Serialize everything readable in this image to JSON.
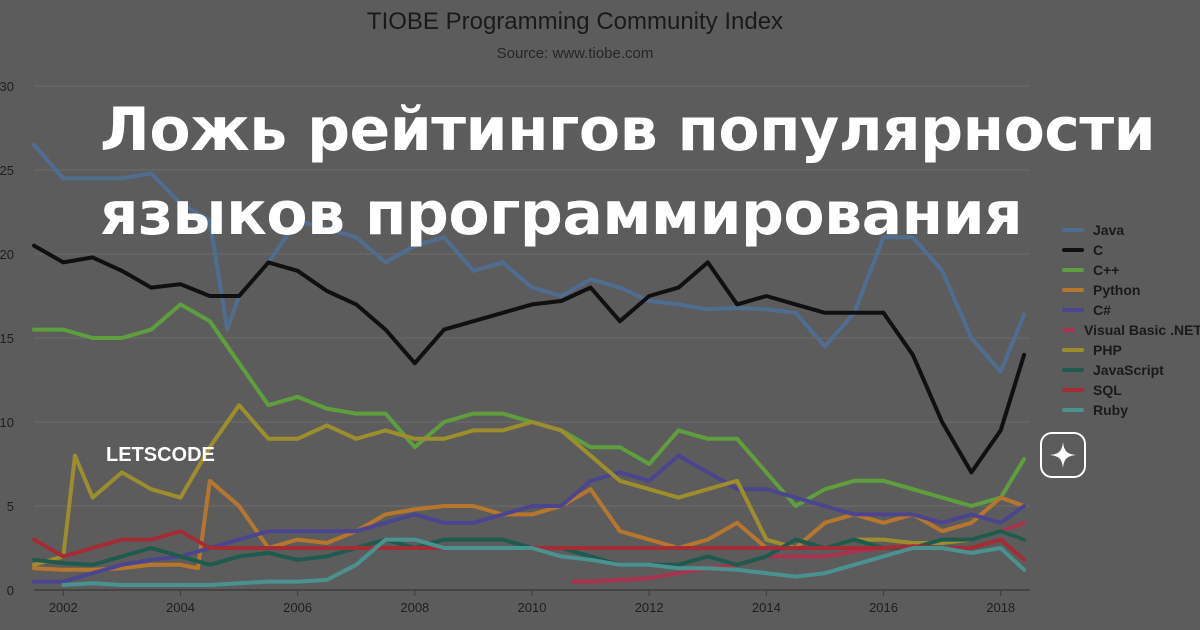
{
  "headline": {
    "line1": "Ложь рейтингов популярности",
    "line2": "языков программирования"
  },
  "brand": {
    "name": "LETSCODE",
    "icon": "sparkle-star-icon"
  },
  "colors": {
    "background": "#5c5c5c",
    "grid": "#6b6b6b",
    "axis": "#3c3c3c"
  },
  "chart_data": {
    "type": "line",
    "title": "TIOBE Programming Community Index",
    "subtitle": "Source: www.tiobe.com",
    "xlabel": "",
    "ylabel": "",
    "xlim": [
      2001.5,
      2018.5
    ],
    "ylim": [
      0,
      30
    ],
    "x_ticks": [
      2002,
      2004,
      2006,
      2008,
      2010,
      2012,
      2014,
      2016,
      2018
    ],
    "y_ticks": [
      0,
      5,
      10,
      15,
      20,
      25,
      30
    ],
    "grid": true,
    "legend_position": "right",
    "series": [
      {
        "name": "Java",
        "color": "#4f6e8f",
        "x": [
          2001.5,
          2002,
          2002.5,
          2003,
          2003.5,
          2004,
          2004.5,
          2004.8,
          2005,
          2005.5,
          2006,
          2006.5,
          2007,
          2007.5,
          2008,
          2008.5,
          2009,
          2009.5,
          2010,
          2010.5,
          2011,
          2011.5,
          2012,
          2012.5,
          2013,
          2013.5,
          2014,
          2014.5,
          2015,
          2015.5,
          2016,
          2016.5,
          2017,
          2017.5,
          2018,
          2018.4
        ],
        "values": [
          26.5,
          24.5,
          24.5,
          24.5,
          24.8,
          23,
          22,
          15.5,
          17.5,
          19.5,
          22,
          21.5,
          21,
          19.5,
          20.5,
          21,
          19,
          19.5,
          18,
          17.5,
          18.5,
          18,
          17.2,
          17,
          16.7,
          16.8,
          16.7,
          16.5,
          14.5,
          16.5,
          21,
          21,
          19,
          15,
          13,
          16.4
        ]
      },
      {
        "name": "C",
        "color": "#101010",
        "x": [
          2001.5,
          2002,
          2002.5,
          2003,
          2003.5,
          2004,
          2004.5,
          2005,
          2005.5,
          2006,
          2006.5,
          2007,
          2007.5,
          2008,
          2008.5,
          2009,
          2009.5,
          2010,
          2010.5,
          2011,
          2011.5,
          2012,
          2012.5,
          2013,
          2013.5,
          2014,
          2014.5,
          2015,
          2015.5,
          2016,
          2016.5,
          2017,
          2017.5,
          2018,
          2018.4
        ],
        "values": [
          20.5,
          19.5,
          19.8,
          19,
          18,
          18.2,
          17.5,
          17.5,
          19.5,
          19,
          17.8,
          17,
          15.5,
          13.5,
          15.5,
          16,
          16.5,
          17,
          17.2,
          18,
          16,
          17.5,
          18,
          19.5,
          17,
          17.5,
          17,
          16.5,
          16.5,
          16.5,
          14,
          10,
          7,
          9.5,
          14
        ]
      },
      {
        "name": "C++",
        "color": "#5c9f3c",
        "x": [
          2001.5,
          2002,
          2002.5,
          2003,
          2003.5,
          2004,
          2004.5,
          2005,
          2005.5,
          2006,
          2006.5,
          2007,
          2007.5,
          2008,
          2008.5,
          2009,
          2009.5,
          2010,
          2010.5,
          2011,
          2011.5,
          2012,
          2012.5,
          2013,
          2013.5,
          2014,
          2014.5,
          2015,
          2015.5,
          2016,
          2016.5,
          2017,
          2017.5,
          2018,
          2018.4
        ],
        "values": [
          15.5,
          15.5,
          15,
          15,
          15.5,
          17,
          16,
          13.5,
          11,
          11.5,
          10.8,
          10.5,
          10.5,
          8.5,
          10,
          10.5,
          10.5,
          10,
          9.5,
          8.5,
          8.5,
          7.5,
          9.5,
          9,
          9,
          7,
          5,
          6,
          6.5,
          6.5,
          6,
          5.5,
          5,
          5.5,
          7.8
        ]
      },
      {
        "name": "Python",
        "color": "#b7762e",
        "x": [
          2001.5,
          2002,
          2002.5,
          2003,
          2003.5,
          2004,
          2004.3,
          2004.5,
          2005,
          2005.5,
          2006,
          2006.5,
          2007,
          2007.5,
          2008,
          2008.5,
          2009,
          2009.5,
          2010,
          2010.5,
          2011,
          2011.5,
          2012,
          2012.5,
          2013,
          2013.5,
          2014,
          2014.5,
          2015,
          2015.5,
          2016,
          2016.5,
          2017,
          2017.5,
          2018,
          2018.4
        ],
        "values": [
          1.3,
          1.2,
          1.2,
          1.3,
          1.5,
          1.5,
          1.3,
          6.5,
          5,
          2.5,
          3,
          2.8,
          3.5,
          4.5,
          4.8,
          5,
          5,
          4.5,
          4.5,
          5,
          6,
          3.5,
          3,
          2.5,
          3,
          4,
          2.5,
          2.5,
          4,
          4.5,
          4,
          4.5,
          3.5,
          4,
          5.5,
          5
        ]
      },
      {
        "name": "C#",
        "color": "#4b4590",
        "x": [
          2001.5,
          2002,
          2002.5,
          2003,
          2003.5,
          2004,
          2004.5,
          2005,
          2005.5,
          2006,
          2006.5,
          2007,
          2007.5,
          2008,
          2008.5,
          2009,
          2009.5,
          2010,
          2010.5,
          2011,
          2011.5,
          2012,
          2012.5,
          2013,
          2013.5,
          2014,
          2014.5,
          2015,
          2015.5,
          2016,
          2016.5,
          2017,
          2017.5,
          2018,
          2018.4
        ],
        "values": [
          0.5,
          0.5,
          1,
          1.5,
          1.8,
          2,
          2.5,
          3,
          3.5,
          3.5,
          3.5,
          3.5,
          4,
          4.5,
          4,
          4,
          4.5,
          5,
          5,
          6.5,
          7,
          6.5,
          8,
          7,
          6,
          6,
          5.5,
          5,
          4.5,
          4.5,
          4.5,
          4,
          4.5,
          4,
          5
        ]
      },
      {
        "name": "Visual Basic .NET",
        "color": "#a8334f",
        "x": [
          2010.7,
          2011,
          2011.5,
          2012,
          2012.5,
          2013,
          2013.5,
          2014,
          2014.5,
          2015,
          2015.5,
          2016,
          2016.5,
          2017,
          2017.5,
          2018,
          2018.4
        ],
        "values": [
          0.5,
          0.5,
          0.6,
          0.7,
          1,
          1.3,
          1.5,
          2,
          2,
          2,
          2.3,
          2.5,
          2.5,
          3,
          3,
          3.5,
          4
        ]
      },
      {
        "name": "PHP",
        "color": "#9c8e2c",
        "x": [
          2001.5,
          2002,
          2002.2,
          2002.5,
          2003,
          2003.5,
          2004,
          2004.5,
          2005,
          2005.5,
          2006,
          2006.5,
          2007,
          2007.5,
          2008,
          2008.5,
          2009,
          2009.5,
          2010,
          2010.5,
          2011,
          2011.5,
          2012,
          2012.5,
          2013,
          2013.5,
          2014,
          2014.5,
          2015,
          2015.5,
          2016,
          2016.5,
          2017,
          2017.5,
          2018,
          2018.4
        ],
        "values": [
          1.5,
          2,
          8,
          5.5,
          7,
          6,
          5.5,
          8.5,
          11,
          9,
          9,
          9.8,
          9,
          9.5,
          9,
          9,
          9.5,
          9.5,
          10,
          9.5,
          8,
          6.5,
          6,
          5.5,
          6,
          6.5,
          3,
          2.5,
          2.5,
          3,
          3,
          2.8,
          2.8,
          3,
          3.5,
          3
        ]
      },
      {
        "name": "JavaScript",
        "color": "#1f5a4e",
        "x": [
          2001.5,
          2002,
          2002.5,
          2003,
          2003.5,
          2004,
          2004.5,
          2005,
          2005.5,
          2006,
          2006.5,
          2007,
          2007.5,
          2008,
          2008.5,
          2009,
          2009.5,
          2010,
          2010.5,
          2011,
          2011.5,
          2012,
          2012.5,
          2013,
          2013.5,
          2014,
          2014.5,
          2015,
          2015.5,
          2016,
          2016.5,
          2017,
          2017.5,
          2018,
          2018.4
        ],
        "values": [
          1.8,
          1.6,
          1.5,
          2,
          2.5,
          2,
          1.5,
          2,
          2.2,
          1.8,
          2,
          2.5,
          3,
          2.5,
          3,
          3,
          3,
          2.5,
          2.5,
          2,
          1.5,
          1.5,
          1.5,
          2,
          1.5,
          2,
          3,
          2.5,
          3,
          2.5,
          2.5,
          3,
          3,
          3.5,
          3
        ]
      },
      {
        "name": "SQL",
        "color": "#a42c35",
        "x": [
          2001.5,
          2002,
          2002.5,
          2003,
          2003.5,
          2004,
          2004.5,
          2005,
          2006,
          2008,
          2010,
          2012,
          2014,
          2014.5,
          2015,
          2015.5,
          2016,
          2016.5,
          2017,
          2017.5,
          2018,
          2018.4
        ],
        "values": [
          3,
          2,
          2.5,
          3,
          3,
          3.5,
          2.5,
          2.5,
          2.5,
          2.5,
          2.5,
          2.5,
          2.5,
          2.5,
          2.5,
          2.5,
          2.5,
          2.6,
          2.5,
          2.5,
          3,
          1.8
        ]
      },
      {
        "name": "Ruby",
        "color": "#4a9290",
        "x": [
          2002,
          2002.5,
          2003,
          2003.5,
          2004,
          2004.5,
          2005,
          2005.5,
          2006,
          2006.5,
          2007,
          2007.5,
          2008,
          2008.5,
          2009,
          2009.5,
          2010,
          2010.5,
          2011,
          2011.5,
          2012,
          2012.5,
          2013,
          2013.5,
          2014,
          2014.5,
          2015,
          2015.5,
          2016,
          2016.5,
          2017,
          2017.5,
          2018,
          2018.4
        ],
        "values": [
          0.3,
          0.4,
          0.3,
          0.3,
          0.3,
          0.3,
          0.4,
          0.5,
          0.5,
          0.6,
          1.5,
          3,
          3,
          2.5,
          2.5,
          2.5,
          2.5,
          2,
          1.8,
          1.5,
          1.5,
          1.3,
          1.3,
          1.2,
          1,
          0.8,
          1,
          1.5,
          2,
          2.5,
          2.5,
          2.2,
          2.5,
          1.2
        ]
      }
    ]
  }
}
